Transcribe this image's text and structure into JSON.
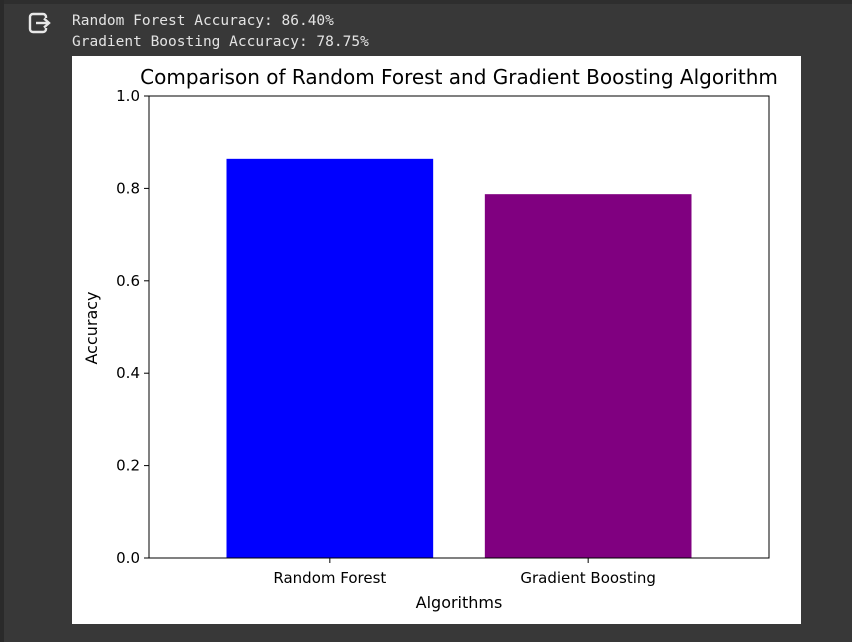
{
  "output": {
    "icon": "output-redirect-icon",
    "lines": [
      "Random Forest Accuracy: 86.40%",
      "Gradient Boosting Accuracy: 78.75%"
    ]
  },
  "chart_data": {
    "type": "bar",
    "title": "Comparison of Random Forest and Gradient Boosting Algorithm",
    "xlabel": "Algorithms",
    "ylabel": "Accuracy",
    "categories": [
      "Random Forest",
      "Gradient Boosting"
    ],
    "values": [
      0.864,
      0.7875
    ],
    "colors": [
      "#0000ff",
      "#800080"
    ],
    "ylim": [
      0,
      1.0
    ],
    "yticks": [
      "0.0",
      "0.2",
      "0.4",
      "0.6",
      "0.8",
      "1.0"
    ],
    "grid": false,
    "legend": "none"
  }
}
